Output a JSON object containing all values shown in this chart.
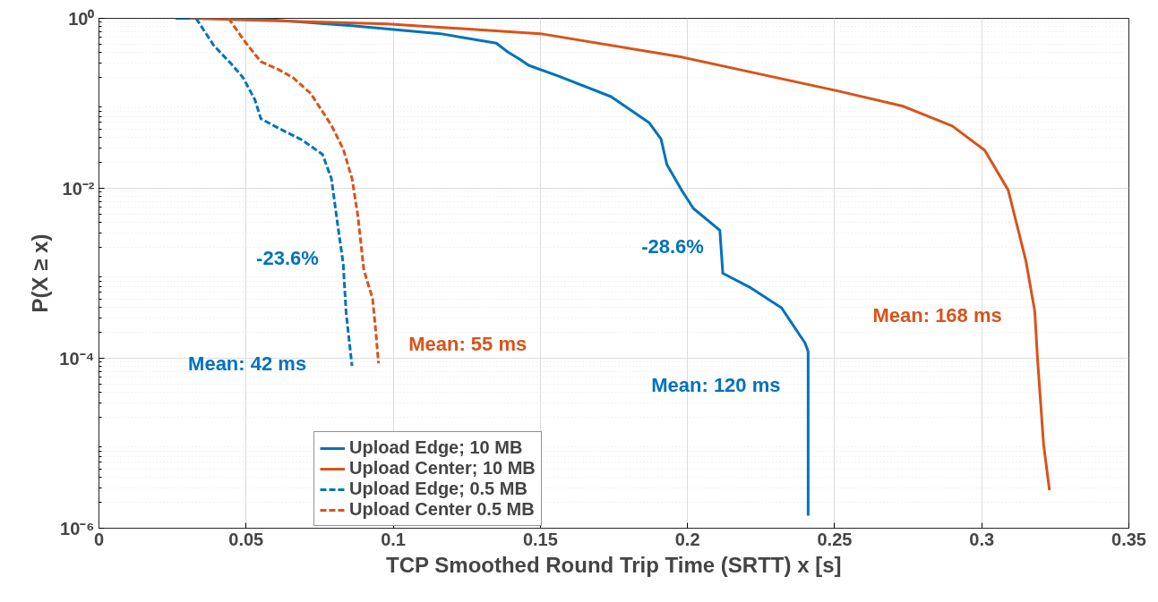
{
  "chart_data": {
    "type": "line",
    "xlabel": "TCP Smoothed Round Trip Time (SRTT) x [s]",
    "ylabel": "P(X ≥ x)",
    "log": "y",
    "grid": true,
    "legend": "bottom",
    "xlim": [
      0,
      0.35
    ],
    "xticks": [
      0,
      0.05,
      0.1,
      0.15,
      0.2,
      0.25,
      0.3,
      0.35
    ],
    "ylim": [
      1e-06,
      1
    ],
    "yticks": [
      {
        "value": 1,
        "label": "10⁰"
      },
      {
        "value": 0.01,
        "label": "10⁻²"
      },
      {
        "value": 0.0001,
        "label": "10⁻⁴"
      },
      {
        "value": 1e-06,
        "label": "10⁻⁶"
      }
    ],
    "series": [
      {
        "name": "Upload Edge; 10 MB",
        "color": "#0072bd",
        "line_style": "solid",
        "x": [
          0.026,
          0.041,
          0.055,
          0.086,
          0.116,
          0.135,
          0.139,
          0.143,
          0.146,
          0.156,
          0.174,
          0.187,
          0.191,
          0.193,
          0.198,
          0.202,
          0.211,
          0.212,
          0.221,
          0.232,
          0.24,
          0.241,
          0.241
        ],
        "values": [
          1,
          1,
          0.98,
          0.82,
          0.66,
          0.51,
          0.4,
          0.33,
          0.28,
          0.21,
          0.12,
          0.059,
          0.038,
          0.019,
          0.0095,
          0.0058,
          0.0032,
          0.001,
          0.00069,
          0.00039,
          0.00015,
          0.00012,
          1.4e-06
        ]
      },
      {
        "name": "Upload Center; 10 MB",
        "color": "#d95319",
        "line_style": "solid",
        "x": [
          0.031,
          0.098,
          0.15,
          0.198,
          0.251,
          0.273,
          0.29,
          0.301,
          0.309,
          0.315,
          0.318,
          0.319,
          0.321,
          0.323
        ],
        "values": [
          1,
          0.86,
          0.66,
          0.35,
          0.14,
          0.093,
          0.054,
          0.028,
          0.0095,
          0.0014,
          0.00036,
          9.3e-05,
          9.8e-06,
          2.8e-06
        ]
      },
      {
        "name": "Upload Edge; 0.5 MB",
        "color": "#0072bd",
        "line_style": "dashed",
        "x": [
          0.033,
          0.039,
          0.045,
          0.049,
          0.053,
          0.055,
          0.061,
          0.069,
          0.076,
          0.079,
          0.081,
          0.083,
          0.084,
          0.086
        ],
        "values": [
          1,
          0.48,
          0.29,
          0.2,
          0.11,
          0.066,
          0.051,
          0.037,
          0.025,
          0.013,
          0.004,
          0.0013,
          0.00034,
          8.1e-05
        ]
      },
      {
        "name": "Upload Center 0.5 MB",
        "color": "#d95319",
        "line_style": "dashed",
        "x": [
          0.044,
          0.05,
          0.055,
          0.061,
          0.066,
          0.072,
          0.079,
          0.083,
          0.086,
          0.088,
          0.09,
          0.093,
          0.094,
          0.095
        ],
        "values": [
          1,
          0.51,
          0.31,
          0.25,
          0.2,
          0.13,
          0.055,
          0.029,
          0.013,
          0.0047,
          0.0011,
          0.0005,
          0.00022,
          8.7e-05
        ]
      }
    ],
    "annotations": [
      "-23.6%",
      "-28.6%",
      "Mean: 42 ms",
      "Mean: 55 ms",
      "Mean: 120 ms",
      "Mean: 168 ms"
    ]
  }
}
